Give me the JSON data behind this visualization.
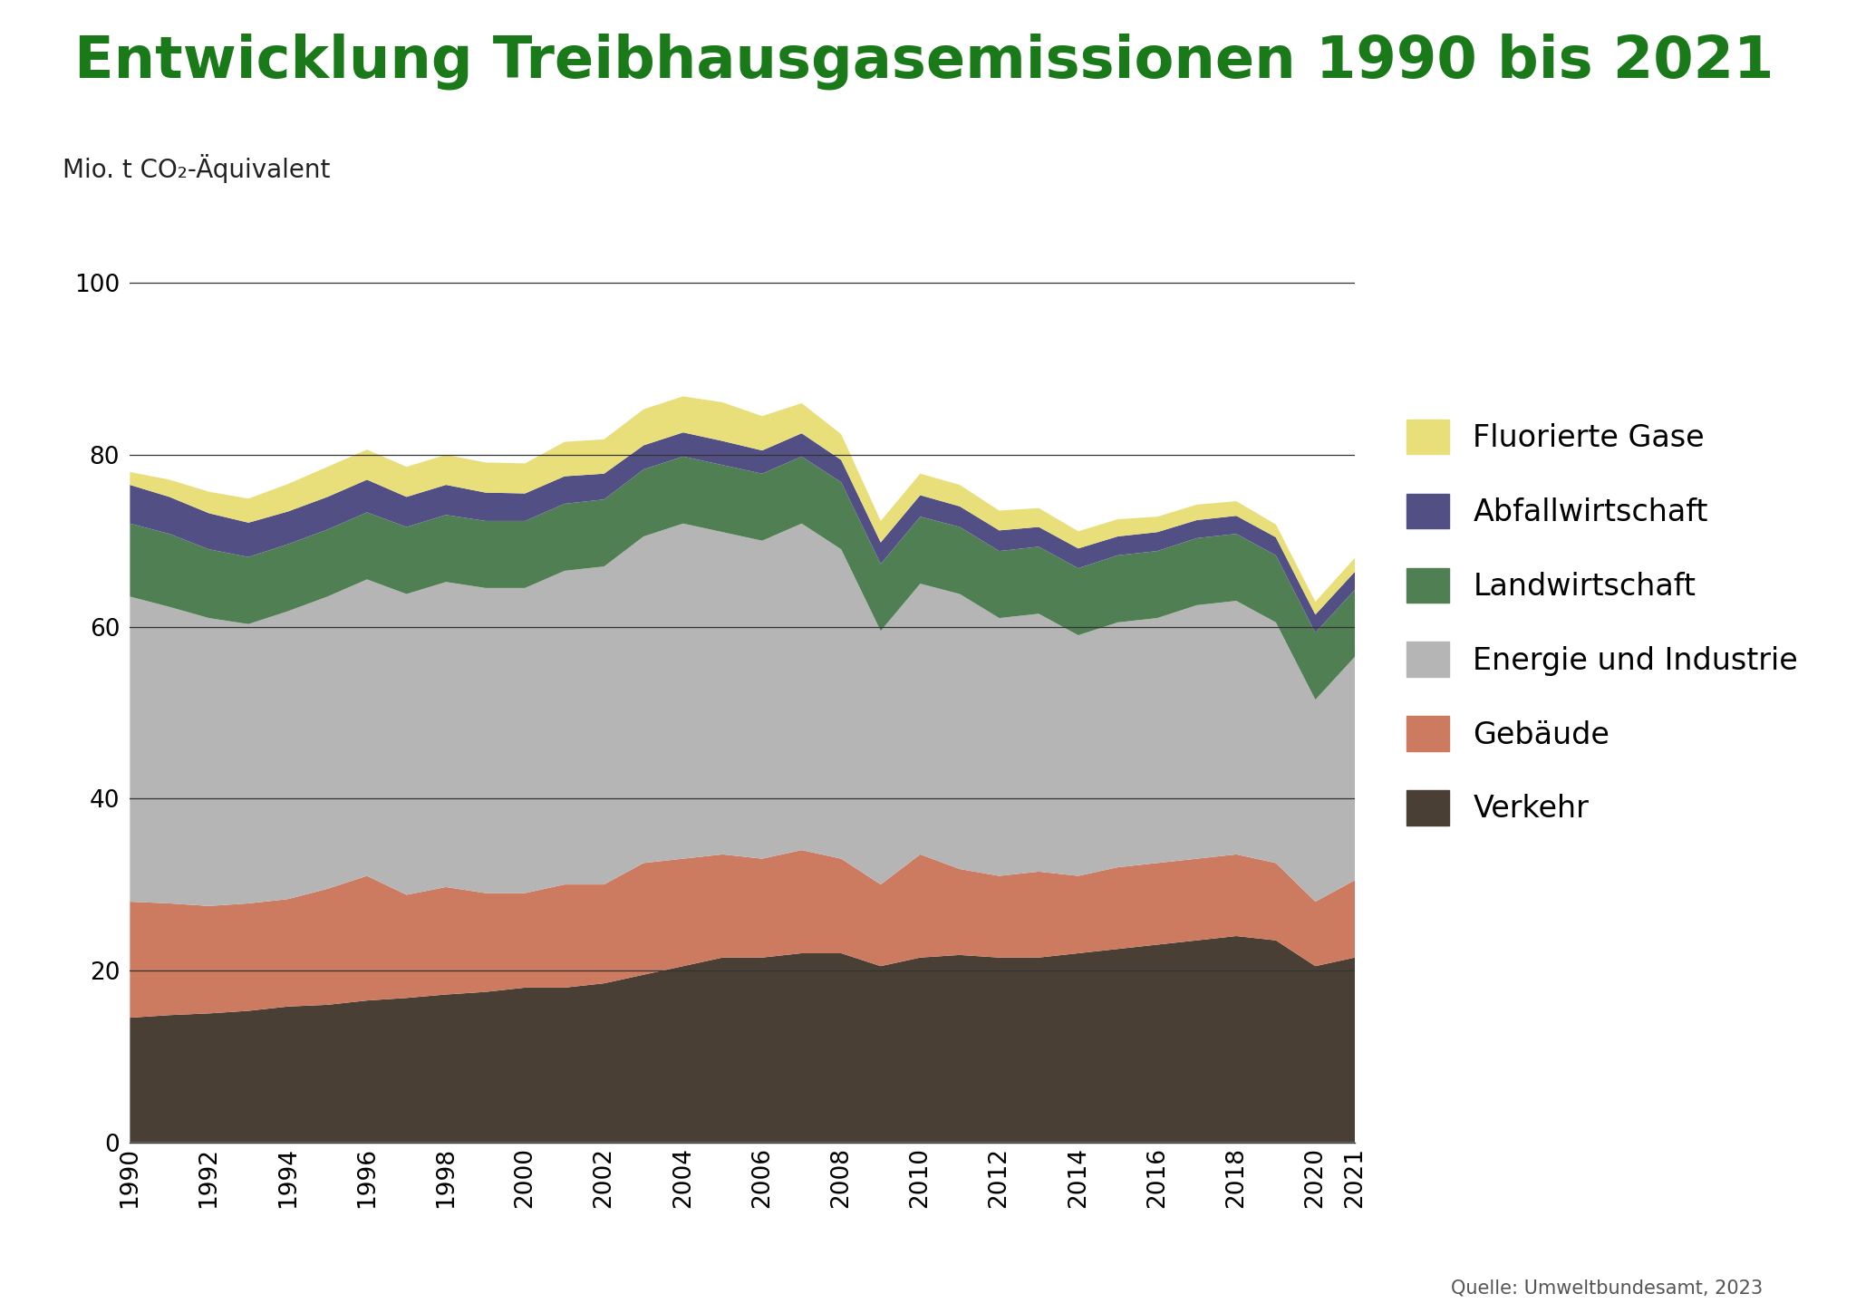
{
  "title": "Entwicklung Treibhausgasemissionen 1990 bis 2021",
  "ylabel": "Mio. t CO₂-Äquivalent",
  "source": "Quelle: Umweltbundesamt, 2023",
  "title_color": "#1a7a1a",
  "background_color": "#ffffff",
  "years": [
    1990,
    1991,
    1992,
    1993,
    1994,
    1995,
    1996,
    1997,
    1998,
    1999,
    2000,
    2001,
    2002,
    2003,
    2004,
    2005,
    2006,
    2007,
    2008,
    2009,
    2010,
    2011,
    2012,
    2013,
    2014,
    2015,
    2016,
    2017,
    2018,
    2019,
    2020,
    2021
  ],
  "series": {
    "Verkehr": [
      14.5,
      14.8,
      15.0,
      15.3,
      15.8,
      16.0,
      16.5,
      16.8,
      17.2,
      17.5,
      18.0,
      18.0,
      18.5,
      19.5,
      20.5,
      21.5,
      21.5,
      22.0,
      22.0,
      20.5,
      21.5,
      21.8,
      21.5,
      21.5,
      22.0,
      22.5,
      23.0,
      23.5,
      24.0,
      23.5,
      20.5,
      21.5
    ],
    "Gebäude": [
      13.5,
      13.0,
      12.5,
      12.5,
      12.5,
      13.5,
      14.5,
      12.0,
      12.5,
      11.5,
      11.0,
      12.0,
      11.5,
      13.0,
      12.5,
      12.0,
      11.5,
      12.0,
      11.0,
      9.5,
      12.0,
      10.0,
      9.5,
      10.0,
      9.0,
      9.5,
      9.5,
      9.5,
      9.5,
      9.0,
      7.5,
      9.0
    ],
    "Energie und Industrie": [
      35.5,
      34.5,
      33.5,
      32.5,
      33.5,
      34.0,
      34.5,
      35.0,
      35.5,
      35.5,
      35.5,
      36.5,
      37.0,
      38.0,
      39.0,
      37.5,
      37.0,
      38.0,
      36.0,
      29.5,
      31.5,
      32.0,
      30.0,
      30.0,
      28.0,
      28.5,
      28.5,
      29.5,
      29.5,
      28.0,
      23.5,
      26.0
    ],
    "Landwirtschaft": [
      8.5,
      8.5,
      8.0,
      7.8,
      7.8,
      7.8,
      7.8,
      7.8,
      7.8,
      7.8,
      7.8,
      7.8,
      7.8,
      7.8,
      7.8,
      7.8,
      7.8,
      7.8,
      7.8,
      7.8,
      7.8,
      7.8,
      7.8,
      7.8,
      7.8,
      7.8,
      7.8,
      7.8,
      7.8,
      7.8,
      7.8,
      7.8
    ],
    "Abfallwirtschaft": [
      4.5,
      4.3,
      4.2,
      4.0,
      3.8,
      3.8,
      3.8,
      3.5,
      3.5,
      3.3,
      3.2,
      3.2,
      3.0,
      2.8,
      2.8,
      2.8,
      2.7,
      2.7,
      2.6,
      2.5,
      2.5,
      2.4,
      2.4,
      2.3,
      2.3,
      2.2,
      2.2,
      2.1,
      2.1,
      2.1,
      2.1,
      2.1
    ],
    "Fluorierte Gase": [
      1.5,
      2.0,
      2.5,
      2.8,
      3.2,
      3.5,
      3.5,
      3.5,
      3.5,
      3.5,
      3.5,
      4.0,
      4.0,
      4.2,
      4.2,
      4.5,
      4.0,
      3.5,
      3.0,
      2.5,
      2.5,
      2.5,
      2.3,
      2.2,
      2.0,
      2.0,
      1.8,
      1.8,
      1.7,
      1.5,
      1.5,
      1.6
    ]
  },
  "colors": {
    "Verkehr": "#4a3f35",
    "Gebäude": "#cc7a60",
    "Energie und Industrie": "#b5b5b5",
    "Landwirtschaft": "#4f7f52",
    "Abfallwirtschaft": "#524f85",
    "Fluorierte Gase": "#e8df7a"
  },
  "ylim": [
    0,
    110
  ],
  "yticks": [
    0,
    20,
    40,
    60,
    80,
    100
  ],
  "title_fontsize": 46,
  "label_fontsize": 20,
  "tick_fontsize": 19,
  "legend_fontsize": 24
}
